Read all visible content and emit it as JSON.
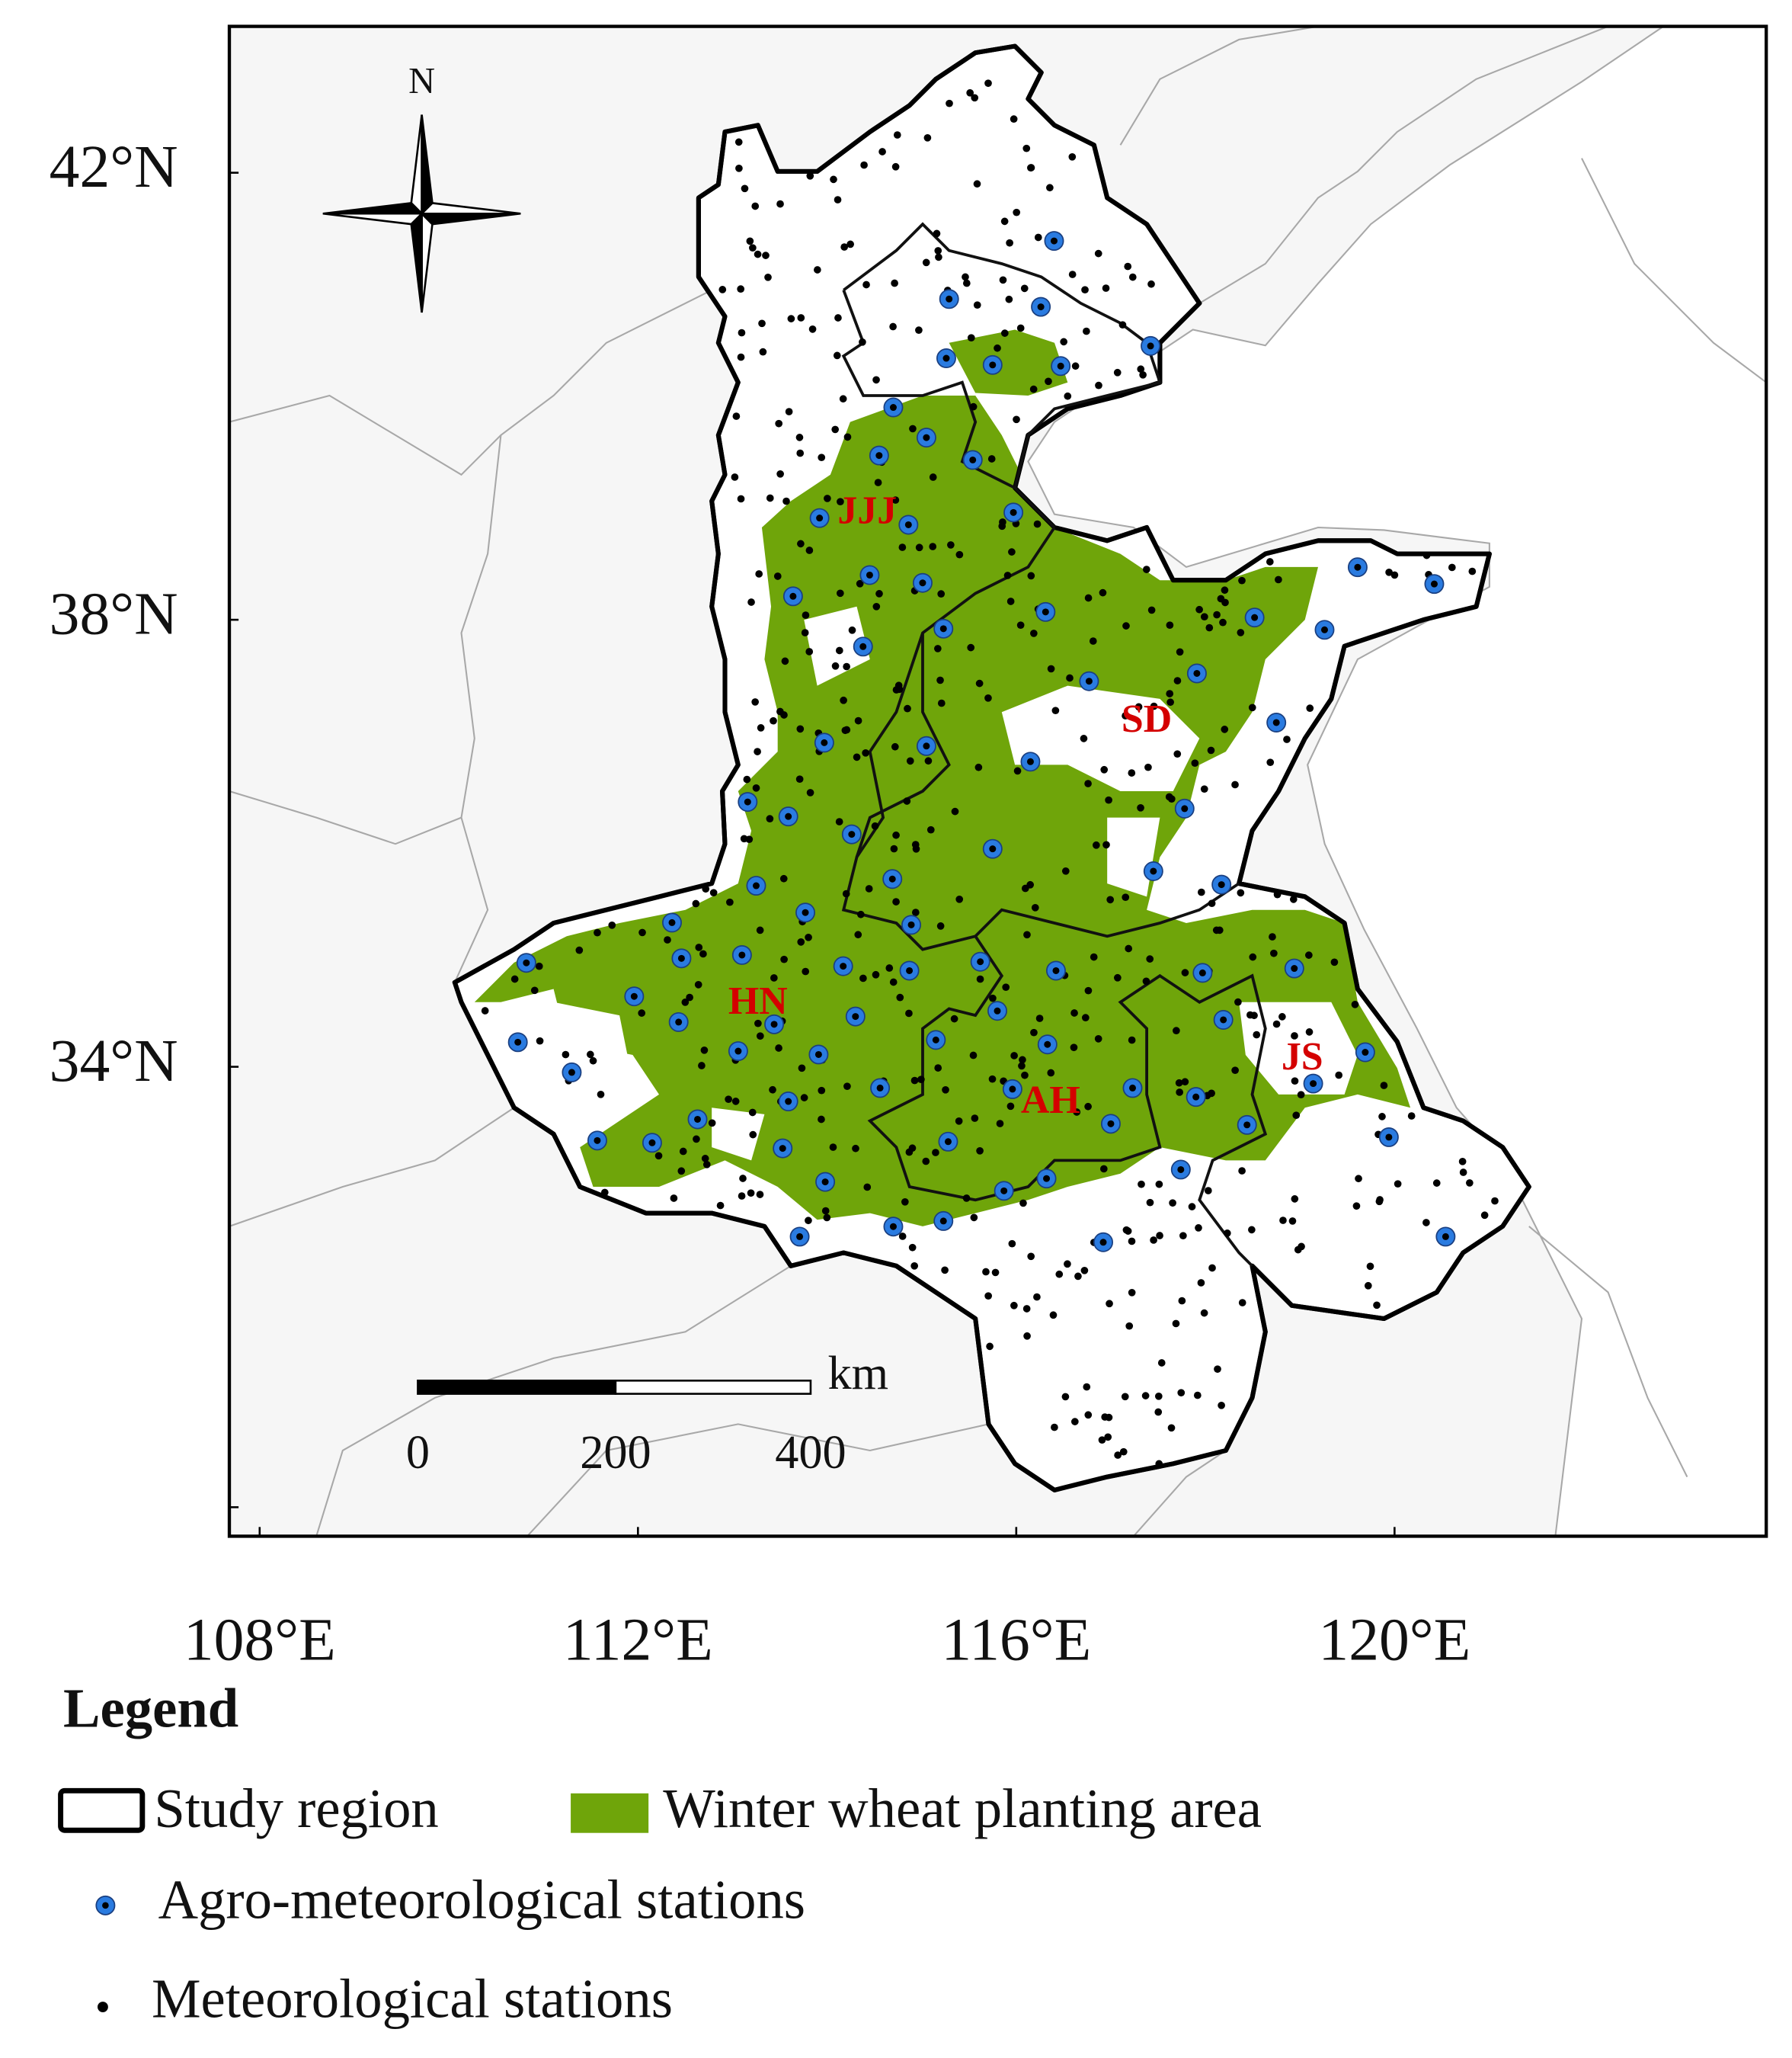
{
  "map": {
    "north": "N",
    "lat_labels": [
      "42°N",
      "38°N",
      "34°N"
    ],
    "lon_labels": [
      "108°E",
      "112°E",
      "116°E",
      "120°E"
    ],
    "scale_bar": {
      "labels": [
        "0",
        "200",
        "400"
      ],
      "unit": "km"
    },
    "regions": [
      "JJJ",
      "SD",
      "HN",
      "AH",
      "JS"
    ],
    "legend": {
      "title": "Legend",
      "study_region": "Study region",
      "wheat": "Winter wheat  planting area",
      "agro": "Agro-meteorological stations",
      "meteo": "Meteorological stations"
    },
    "agro_stations": {
      "lon": [
        115.29,
        116.26,
        116.4,
        117.42,
        115.26,
        115.75,
        116.47,
        114.7,
        115.05,
        114.55,
        115.54,
        115.97,
        113.92,
        114.86,
        114.45,
        115.01,
        113.64,
        116.31,
        115.23,
        114.38,
        119.61,
        120.42,
        118.52,
        119.26,
        117.91,
        116.77,
        118.75,
        115.05,
        113.97,
        116.15,
        113.16,
        113.59,
        114.26,
        117.78,
        115.75,
        114.69,
        117.45,
        113.25,
        113.77,
        118.17,
        112.36,
        114.89,
        110.82,
        112.46,
        113.1,
        114.17,
        115.62,
        114.87,
        111.96,
        116.42,
        117.97,
        118.94,
        113.44,
        114.3,
        115.8,
        112.43,
        118.19,
        110.73,
        115.15,
        116.33,
        113.06,
        113.91,
        119.69,
        111.3,
        114.56,
        113.59,
        115.96,
        117.23,
        117.9,
        119.14,
        112.63,
        117.0,
        118.44,
        111.57,
        112.15,
        119.94,
        113.53,
        115.28,
        117.74,
        113.98,
        116.32,
        115.87,
        113.71,
        114.7,
        115.23,
        116.92,
        120.54
      ],
      "lat": [
        40.87,
        40.8,
        41.39,
        40.45,
        40.34,
        40.28,
        40.27,
        39.9,
        39.63,
        39.47,
        39.43,
        38.96,
        38.91,
        38.85,
        38.4,
        38.33,
        38.21,
        38.07,
        37.92,
        37.76,
        38.47,
        38.32,
        38.02,
        37.91,
        37.52,
        37.45,
        37.08,
        36.87,
        36.9,
        36.73,
        36.37,
        36.24,
        36.08,
        36.31,
        35.95,
        35.68,
        35.75,
        35.62,
        35.38,
        35.63,
        35.29,
        35.27,
        34.93,
        34.97,
        35.0,
        34.9,
        34.94,
        34.86,
        34.63,
        34.86,
        34.84,
        34.88,
        34.38,
        34.45,
        34.5,
        34.4,
        34.42,
        34.22,
        34.24,
        34.2,
        34.14,
        34.11,
        34.13,
        33.95,
        33.81,
        33.69,
        33.8,
        33.81,
        33.73,
        33.85,
        33.53,
        33.49,
        33.48,
        33.34,
        33.32,
        33.37,
        33.27,
        33.33,
        33.08,
        32.97,
        33.0,
        32.89,
        32.48,
        32.57,
        32.62,
        32.43,
        32.48
      ]
    }
  }
}
